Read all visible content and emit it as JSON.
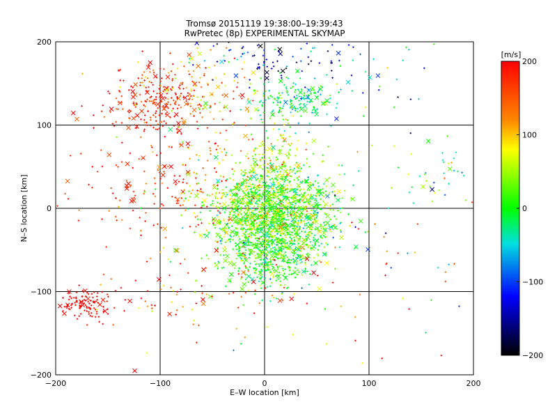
{
  "chart_data": {
    "type": "scatter",
    "title": "Tromsø 20151119 19:38:00–19:39:43",
    "subtitle": "RwPretec (8p) EXPERIMENTAL SKYMAP",
    "xlabel": "E–W location [km]",
    "ylabel": "N–S location [km]",
    "xlim": [
      -200,
      200
    ],
    "ylim": [
      -200,
      200
    ],
    "x_ticks": [
      "−200",
      "−100",
      "0",
      "100",
      "200"
    ],
    "y_ticks": [
      "−200",
      "−100",
      "0",
      "100",
      "200"
    ],
    "grid": true,
    "colorbar": {
      "unit": "[m/s]",
      "range": [
        -200,
        200
      ],
      "tick_labels": [
        "200",
        "100",
        "0",
        "−100",
        "−200"
      ]
    },
    "markers": [
      "dot",
      "cross"
    ],
    "clusters": [
      {
        "cx": 10,
        "cy": -10,
        "sx": 28,
        "sy": 30,
        "n": 1600,
        "v": 20,
        "vs": 40
      },
      {
        "cx": 0,
        "cy": -60,
        "sx": 22,
        "sy": 18,
        "n": 260,
        "v": 5,
        "vs": 25
      },
      {
        "cx": 30,
        "cy": 130,
        "sx": 20,
        "sy": 15,
        "n": 170,
        "v": -20,
        "vs": 35
      },
      {
        "cx": 10,
        "cy": 180,
        "sx": 40,
        "sy": 15,
        "n": 90,
        "v": -120,
        "vs": 50
      },
      {
        "cx": -100,
        "cy": 130,
        "sx": 30,
        "sy": 20,
        "n": 240,
        "v": 180,
        "vs": 30
      },
      {
        "cx": -60,
        "cy": 150,
        "sx": 25,
        "sy": 25,
        "n": 90,
        "v": 110,
        "vs": 40
      },
      {
        "cx": -170,
        "cy": -115,
        "sx": 12,
        "sy": 9,
        "n": 110,
        "v": 200,
        "vs": 8
      },
      {
        "cx": -100,
        "cy": 30,
        "sx": 40,
        "sy": 40,
        "n": 180,
        "v": 170,
        "vs": 40
      },
      {
        "cx": -40,
        "cy": 20,
        "sx": 35,
        "sy": 45,
        "n": 160,
        "v": 80,
        "vs": 50
      },
      {
        "cx": -60,
        "cy": -100,
        "sx": 60,
        "sy": 30,
        "n": 90,
        "v": 150,
        "vs": 60
      },
      {
        "cx": 10,
        "cy": 60,
        "sx": 20,
        "sy": 25,
        "n": 120,
        "v": 70,
        "vs": 40
      },
      {
        "cx": 170,
        "cy": 40,
        "sx": 15,
        "sy": 15,
        "n": 35,
        "v": 0,
        "vs": 60
      },
      {
        "cx": 120,
        "cy": -60,
        "sx": 60,
        "sy": 60,
        "n": 70,
        "v": 50,
        "vs": 120
      },
      {
        "cx": 100,
        "cy": 160,
        "sx": 50,
        "sy": 40,
        "n": 45,
        "v": -60,
        "vs": 80
      }
    ]
  }
}
